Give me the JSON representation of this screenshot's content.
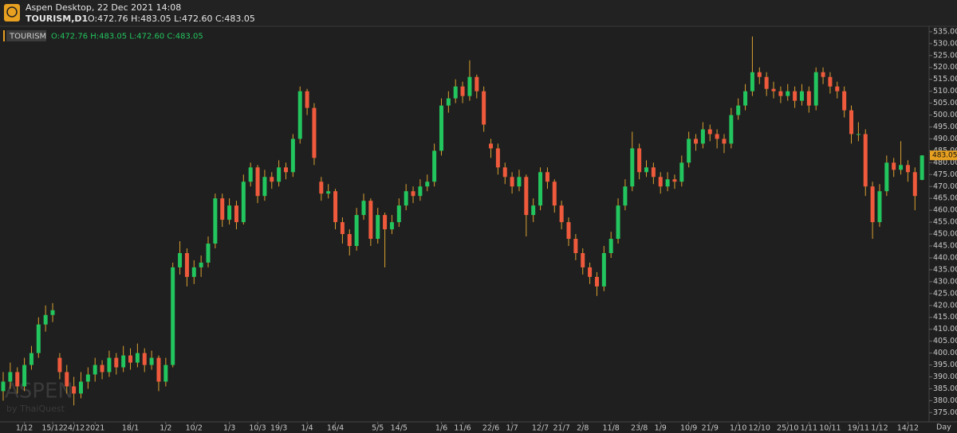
{
  "app": {
    "title": "Aspen Desktop, 22 Dec 2021 14:08",
    "symbol": "TOURISM,D1",
    "ohlc": "O:472.76 H:483.05 L:472.60 C:483.05"
  },
  "watermark": {
    "brand": "ASPEN",
    "by": "by ThaiQuest"
  },
  "period": "Day",
  "chart_data": {
    "type": "candlestick",
    "ylim": [
      371.1,
      537.3
    ],
    "yticks": [
      {
        "value": 375,
        "label": "375.00"
      },
      {
        "value": 380,
        "label": "380.00"
      },
      {
        "value": 385,
        "label": "385.00"
      },
      {
        "value": 390,
        "label": "390.00"
      },
      {
        "value": 395,
        "label": "395.00"
      },
      {
        "value": 400,
        "label": "400.00"
      },
      {
        "value": 405,
        "label": "405.00"
      },
      {
        "value": 410,
        "label": "410.00"
      },
      {
        "value": 415,
        "label": "415.00"
      },
      {
        "value": 420,
        "label": "420.00"
      },
      {
        "value": 425,
        "label": "425.00"
      },
      {
        "value": 430,
        "label": "430.00"
      },
      {
        "value": 435,
        "label": "435.00"
      },
      {
        "value": 440,
        "label": "440.00"
      },
      {
        "value": 445,
        "label": "445.00"
      },
      {
        "value": 450,
        "label": "450.00"
      },
      {
        "value": 455,
        "label": "455.00"
      },
      {
        "value": 460,
        "label": "460.00"
      },
      {
        "value": 465,
        "label": "465.00"
      },
      {
        "value": 470,
        "label": "470.00"
      },
      {
        "value": 475,
        "label": "475.00"
      },
      {
        "value": 480,
        "label": "480.00"
      },
      {
        "value": 485,
        "label": "485.00"
      },
      {
        "value": 490,
        "label": "490.00"
      },
      {
        "value": 495,
        "label": "495.00"
      },
      {
        "value": 500,
        "label": "500.00"
      },
      {
        "value": 505,
        "label": "505.00"
      },
      {
        "value": 510,
        "label": "510.00"
      },
      {
        "value": 515,
        "label": "515.00"
      },
      {
        "value": 520,
        "label": "520.00"
      },
      {
        "value": 525,
        "label": "525.00"
      },
      {
        "value": 530,
        "label": "530.00"
      },
      {
        "value": 535,
        "label": "535.00"
      }
    ],
    "categories": [
      null,
      null,
      null,
      "1/12",
      null,
      null,
      null,
      "15/12",
      null,
      null,
      "24/12",
      null,
      null,
      "2021",
      null,
      null,
      null,
      null,
      "18/1",
      null,
      null,
      null,
      null,
      "1/2",
      null,
      null,
      null,
      "10/2",
      null,
      null,
      null,
      null,
      "1/3",
      null,
      null,
      null,
      "10/3",
      null,
      null,
      "19/3",
      null,
      null,
      null,
      "1/4",
      null,
      null,
      null,
      "16/4",
      null,
      null,
      null,
      null,
      null,
      "5/5",
      null,
      null,
      "14/5",
      null,
      null,
      null,
      null,
      null,
      "1/6",
      null,
      null,
      "11/6",
      null,
      null,
      null,
      "22/6",
      null,
      null,
      "1/7",
      null,
      null,
      null,
      "12/7",
      null,
      null,
      "21/7",
      null,
      null,
      "2/8",
      null,
      null,
      null,
      "11/8",
      null,
      null,
      null,
      "23/8",
      null,
      null,
      "1/9",
      null,
      null,
      null,
      "10/9",
      null,
      null,
      "21/9",
      null,
      null,
      null,
      "1/10",
      null,
      null,
      "12/10",
      null,
      null,
      null,
      "25/10",
      null,
      null,
      "1/11",
      null,
      null,
      "10/11",
      null,
      null,
      null,
      "19/11",
      null,
      null,
      "1/12",
      null,
      null,
      null,
      "14/12",
      null,
      null
    ],
    "series": [
      {
        "name": "TOURISM",
        "up_color": "#22c55e",
        "down_color": "#ef5a3c",
        "wick_color": "#d9a030",
        "values": [
          [
            384,
            392,
            380,
            388
          ],
          [
            388,
            396,
            385,
            392
          ],
          [
            392,
            394,
            383,
            386
          ],
          [
            386,
            398,
            384,
            395
          ],
          [
            395,
            403,
            393,
            400
          ],
          [
            400,
            415,
            398,
            412
          ],
          [
            412,
            420,
            409,
            416
          ],
          [
            416,
            421,
            413,
            418
          ],
          [
            398,
            400,
            389,
            392
          ],
          [
            392,
            395,
            383,
            386
          ],
          [
            386,
            390,
            378,
            383
          ],
          [
            383,
            392,
            381,
            388
          ],
          [
            388,
            394,
            385,
            391
          ],
          [
            391,
            398,
            388,
            395
          ],
          [
            395,
            397,
            389,
            392
          ],
          [
            392,
            401,
            390,
            398
          ],
          [
            398,
            400,
            391,
            394
          ],
          [
            394,
            403,
            392,
            399
          ],
          [
            399,
            402,
            393,
            396
          ],
          [
            396,
            404,
            394,
            400
          ],
          [
            400,
            402,
            392,
            395
          ],
          [
            395,
            401,
            393,
            398
          ],
          [
            398,
            399,
            384,
            388
          ],
          [
            388,
            398,
            386,
            395
          ],
          [
            395,
            438,
            394,
            436
          ],
          [
            436,
            447,
            433,
            442
          ],
          [
            442,
            444,
            428,
            432
          ],
          [
            432,
            439,
            429,
            436
          ],
          [
            436,
            441,
            432,
            438
          ],
          [
            438,
            449,
            436,
            446
          ],
          [
            446,
            467,
            444,
            465
          ],
          [
            465,
            467,
            453,
            456
          ],
          [
            456,
            465,
            454,
            462
          ],
          [
            462,
            464,
            452,
            455
          ],
          [
            455,
            475,
            454,
            472
          ],
          [
            472,
            480,
            470,
            478
          ],
          [
            478,
            479,
            463,
            466
          ],
          [
            466,
            477,
            464,
            474
          ],
          [
            474,
            476,
            469,
            472
          ],
          [
            472,
            481,
            470,
            478
          ],
          [
            478,
            480,
            473,
            476
          ],
          [
            476,
            492,
            474,
            490
          ],
          [
            490,
            512,
            488,
            510
          ],
          [
            510,
            511,
            500,
            503
          ],
          [
            503,
            505,
            479,
            482
          ],
          [
            472,
            474,
            464,
            467
          ],
          [
            467,
            471,
            465,
            468
          ],
          [
            468,
            469,
            452,
            455
          ],
          [
            455,
            457,
            446,
            450
          ],
          [
            450,
            452,
            441,
            445
          ],
          [
            445,
            461,
            443,
            458
          ],
          [
            458,
            467,
            456,
            464
          ],
          [
            464,
            465,
            445,
            448
          ],
          [
            448,
            461,
            446,
            458
          ],
          [
            458,
            459,
            436,
            452
          ],
          [
            452,
            458,
            450,
            455
          ],
          [
            455,
            465,
            453,
            462
          ],
          [
            462,
            471,
            460,
            468
          ],
          [
            468,
            470,
            463,
            466
          ],
          [
            466,
            473,
            464,
            470
          ],
          [
            470,
            475,
            468,
            472
          ],
          [
            472,
            488,
            470,
            485
          ],
          [
            485,
            507,
            483,
            504
          ],
          [
            504,
            510,
            501,
            507
          ],
          [
            507,
            515,
            505,
            512
          ],
          [
            512,
            514,
            505,
            508
          ],
          [
            508,
            523,
            506,
            516
          ],
          [
            516,
            517,
            507,
            510
          ],
          [
            510,
            512,
            493,
            496
          ],
          [
            488,
            490,
            482,
            486
          ],
          [
            486,
            488,
            475,
            478
          ],
          [
            478,
            480,
            471,
            474
          ],
          [
            474,
            476,
            467,
            470
          ],
          [
            470,
            477,
            468,
            474
          ],
          [
            474,
            475,
            449,
            458
          ],
          [
            458,
            465,
            455,
            462
          ],
          [
            462,
            478,
            460,
            476
          ],
          [
            476,
            478,
            469,
            472
          ],
          [
            472,
            473,
            459,
            462
          ],
          [
            462,
            464,
            452,
            455
          ],
          [
            455,
            457,
            445,
            448
          ],
          [
            448,
            450,
            439,
            442
          ],
          [
            442,
            444,
            433,
            436
          ],
          [
            436,
            438,
            429,
            432
          ],
          [
            432,
            434,
            424,
            428
          ],
          [
            428,
            445,
            426,
            442
          ],
          [
            442,
            451,
            440,
            448
          ],
          [
            448,
            465,
            446,
            462
          ],
          [
            462,
            473,
            460,
            470
          ],
          [
            470,
            493,
            468,
            486
          ],
          [
            486,
            488,
            473,
            476
          ],
          [
            476,
            481,
            474,
            478
          ],
          [
            478,
            480,
            471,
            474
          ],
          [
            474,
            476,
            467,
            470
          ],
          [
            470,
            476,
            468,
            473
          ],
          [
            473,
            475,
            469,
            472
          ],
          [
            472,
            483,
            470,
            480
          ],
          [
            480,
            493,
            478,
            490
          ],
          [
            490,
            492,
            485,
            488
          ],
          [
            488,
            497,
            486,
            494
          ],
          [
            494,
            496,
            489,
            492
          ],
          [
            492,
            494,
            486,
            490
          ],
          [
            490,
            492,
            484,
            488
          ],
          [
            488,
            503,
            486,
            500
          ],
          [
            500,
            507,
            498,
            504
          ],
          [
            504,
            513,
            502,
            510
          ],
          [
            510,
            533,
            508,
            518
          ],
          [
            518,
            520,
            513,
            516
          ],
          [
            516,
            518,
            508,
            511
          ],
          [
            511,
            514,
            507,
            510
          ],
          [
            510,
            512,
            505,
            508
          ],
          [
            508,
            513,
            506,
            510
          ],
          [
            510,
            512,
            503,
            506
          ],
          [
            506,
            513,
            504,
            510
          ],
          [
            510,
            512,
            501,
            504
          ],
          [
            504,
            520,
            502,
            518
          ],
          [
            518,
            520,
            513,
            516
          ],
          [
            516,
            518,
            509,
            512
          ],
          [
            512,
            514,
            507,
            510
          ],
          [
            510,
            512,
            499,
            502
          ],
          [
            502,
            504,
            488,
            492
          ],
          [
            492,
            497,
            489,
            492
          ],
          [
            492,
            494,
            466,
            470
          ],
          [
            470,
            472,
            448,
            455
          ],
          [
            455,
            471,
            453,
            468
          ],
          [
            468,
            483,
            466,
            480
          ],
          [
            480,
            482,
            474,
            477
          ],
          [
            477,
            489,
            475,
            479
          ],
          [
            479,
            481,
            472,
            476
          ],
          [
            476,
            478,
            460,
            466
          ],
          [
            472.76,
            483.05,
            472.6,
            483.05
          ]
        ]
      }
    ]
  }
}
